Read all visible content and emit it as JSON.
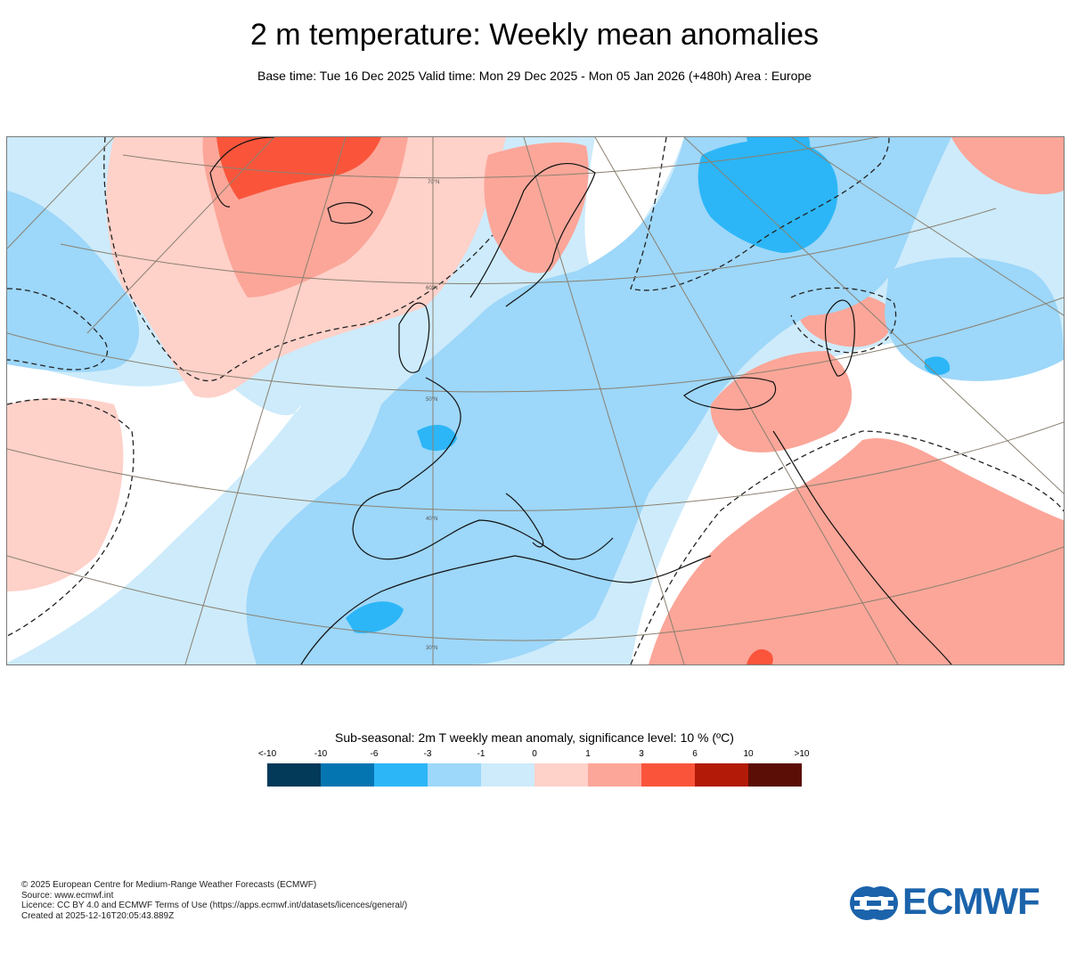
{
  "header": {
    "title": "2 m temperature: Weekly mean anomalies",
    "subtitle": "Base time: Tue 16 Dec 2025 Valid time: Mon 29 Dec 2025 - Mon 05 Jan 2026 (+480h) Area : Europe"
  },
  "map": {
    "region": "Europe",
    "graticule_labels": [
      "70°N",
      "60°N",
      "50°N",
      "40°N",
      "30°N"
    ]
  },
  "legend": {
    "title": "Sub-seasonal: 2m T weekly mean anomaly, significance level: 10 % (ºC)",
    "labels": [
      "<-10",
      "-10",
      "-6",
      "-3",
      "-1",
      "0",
      "1",
      "3",
      "6",
      "10",
      ">10"
    ],
    "colors": [
      "#033959",
      "#0575b1",
      "#2cb6f7",
      "#9dd7f9",
      "#cdebfb",
      "#fed1c9",
      "#fba699",
      "#fa553b",
      "#b31a08",
      "#5b0e05"
    ]
  },
  "footer": {
    "lines": [
      "© 2025 European Centre for Medium-Range Weather Forecasts (ECMWF)",
      "Source: www.ecmwf.int",
      "Licence: CC BY 4.0 and ECMWF Terms of Use (https://apps.ecmwf.int/datasets/licences/general/)",
      "Created at 2025-12-16T20:05:43.889Z"
    ]
  },
  "logo": {
    "text": "ECMWF",
    "color": "#1b63ab"
  }
}
